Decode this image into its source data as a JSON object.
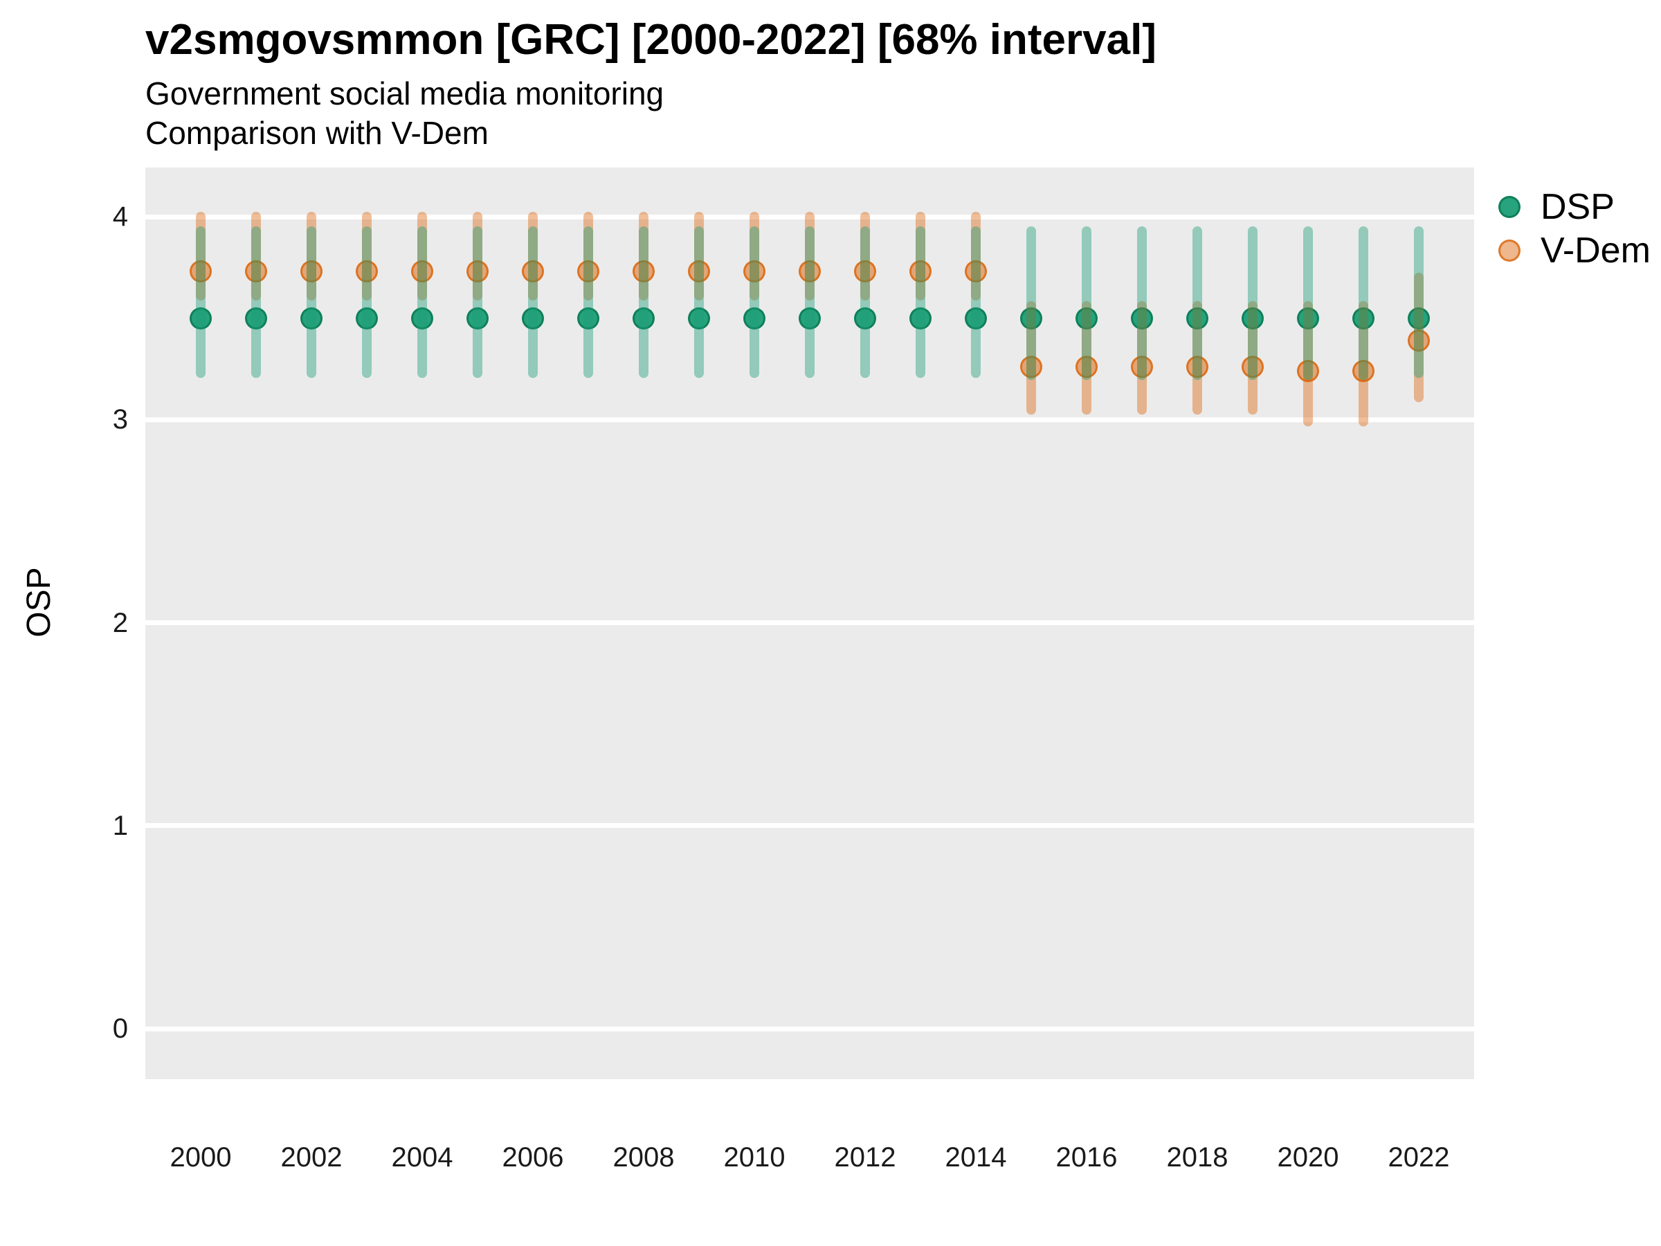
{
  "header": {
    "title": "v2smgovsmmon [GRC] [2000-2022] [68% interval]",
    "subtitle_line1": "Government social media monitoring",
    "subtitle_line2": "Comparison with V-Dem"
  },
  "chart_data": {
    "type": "pointrange",
    "title": "v2smgovsmmon [GRC] [2000-2022] [68% interval]",
    "subtitle": [
      "Government social media monitoring",
      "Comparison with V-Dem"
    ],
    "interval_level": "68%",
    "country": "GRC",
    "xlabel": "",
    "ylabel": "OSP",
    "ylim": [
      -0.25,
      4.24
    ],
    "y_ticks": [
      0,
      1,
      2,
      3,
      4
    ],
    "x_tick_labels": [
      "2000",
      "2002",
      "2004",
      "2006",
      "2008",
      "2010",
      "2012",
      "2014",
      "2016",
      "2018",
      "2020",
      "2022"
    ],
    "grid": "horizontal major gridlines only, white on gray panel",
    "legend_position": "right-top",
    "years": [
      2000,
      2001,
      2002,
      2003,
      2004,
      2005,
      2006,
      2007,
      2008,
      2009,
      2010,
      2011,
      2012,
      2013,
      2014,
      2015,
      2016,
      2017,
      2018,
      2019,
      2020,
      2021,
      2022
    ],
    "series": [
      {
        "name": "DSP",
        "color": "#1b9e77",
        "values": [
          3.5,
          3.5,
          3.5,
          3.5,
          3.5,
          3.5,
          3.5,
          3.5,
          3.5,
          3.5,
          3.5,
          3.5,
          3.5,
          3.5,
          3.5,
          3.5,
          3.5,
          3.5,
          3.5,
          3.5,
          3.5,
          3.5,
          3.5
        ],
        "lower": [
          3.23,
          3.23,
          3.23,
          3.23,
          3.23,
          3.23,
          3.23,
          3.23,
          3.23,
          3.23,
          3.23,
          3.23,
          3.23,
          3.23,
          3.23,
          3.22,
          3.22,
          3.22,
          3.22,
          3.22,
          3.22,
          3.22,
          3.23
        ],
        "upper": [
          3.93,
          3.93,
          3.93,
          3.93,
          3.93,
          3.93,
          3.93,
          3.93,
          3.93,
          3.93,
          3.93,
          3.93,
          3.93,
          3.93,
          3.93,
          3.93,
          3.93,
          3.93,
          3.93,
          3.93,
          3.93,
          3.93,
          3.93
        ]
      },
      {
        "name": "V-Dem",
        "color": "#d95f02",
        "values": [
          3.73,
          3.73,
          3.73,
          3.73,
          3.73,
          3.73,
          3.73,
          3.73,
          3.73,
          3.73,
          3.73,
          3.73,
          3.73,
          3.73,
          3.73,
          3.26,
          3.26,
          3.26,
          3.26,
          3.26,
          3.24,
          3.24,
          3.39
        ],
        "lower": [
          3.61,
          3.61,
          3.61,
          3.61,
          3.61,
          3.61,
          3.61,
          3.61,
          3.61,
          3.61,
          3.61,
          3.61,
          3.61,
          3.61,
          3.61,
          3.05,
          3.05,
          3.05,
          3.05,
          3.05,
          2.99,
          2.99,
          3.11
        ],
        "upper": [
          4.0,
          4.0,
          4.0,
          4.0,
          4.0,
          4.0,
          4.0,
          4.0,
          4.0,
          4.0,
          4.0,
          4.0,
          4.0,
          4.0,
          4.0,
          3.56,
          3.56,
          3.56,
          3.56,
          3.56,
          3.56,
          3.56,
          3.7
        ]
      }
    ]
  },
  "colors": {
    "panel_background": "#ebebeb",
    "page_background": "#ffffff",
    "gridline": "#ffffff",
    "dsp_green": "#1b9e77",
    "vdem_orange": "#d95f02",
    "text": "#000000"
  }
}
